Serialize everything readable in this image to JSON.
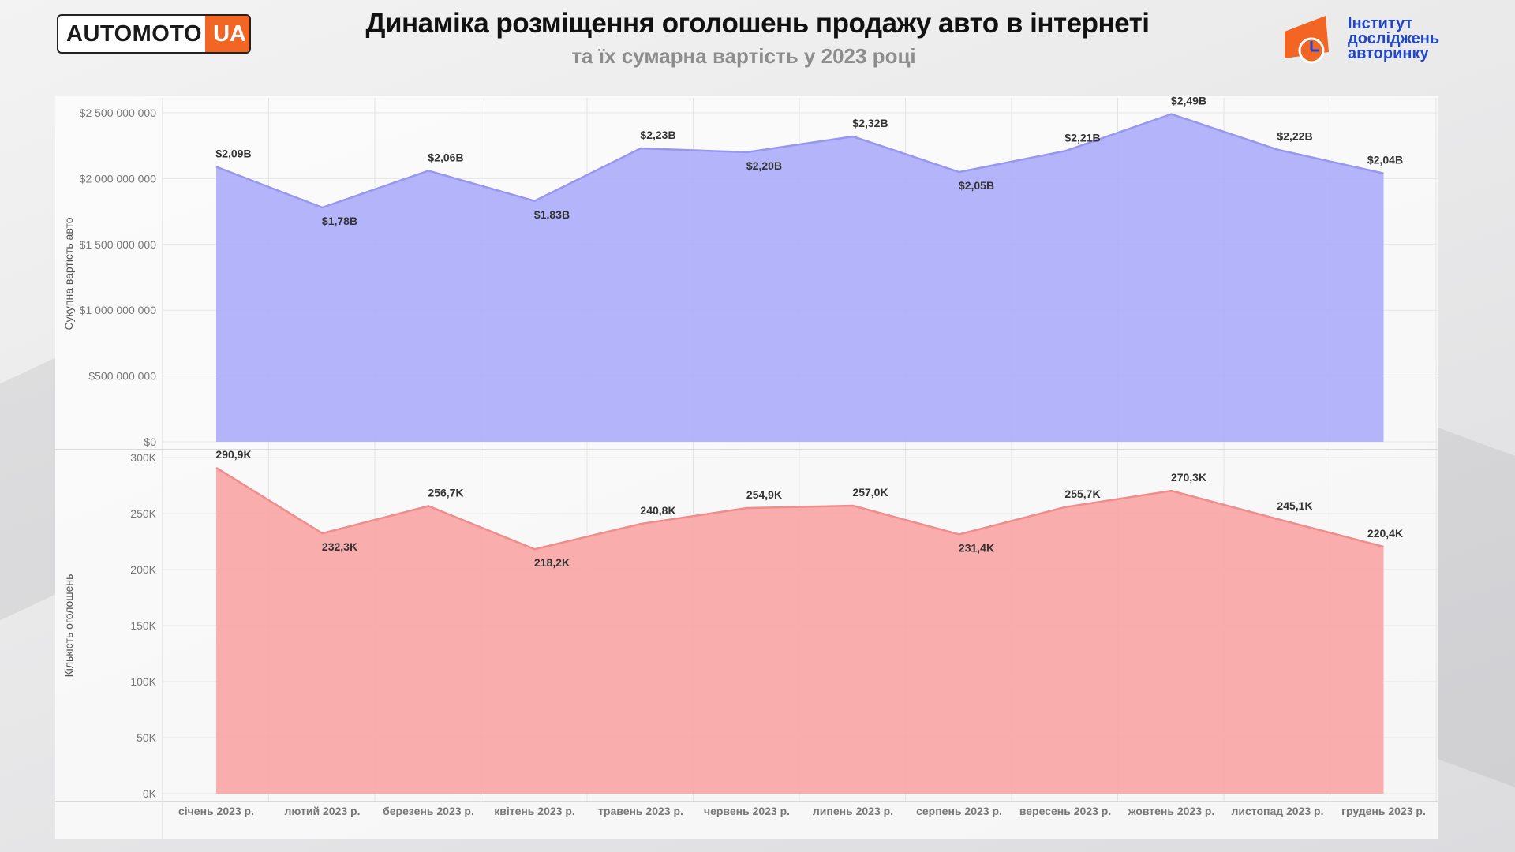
{
  "header": {
    "title": "Динаміка розміщення оголошень продажу авто в інтернеті",
    "subtitle": "та їх сумарна вартість у 2023 році"
  },
  "logos": {
    "left_word": "AUTOMOTO",
    "left_suffix": "UA",
    "right_lines": [
      "Інститут",
      "досліджень",
      "авторинку"
    ]
  },
  "colors": {
    "value_area": "#aeaefb",
    "value_line": "#9797f0",
    "count_area": "#faa6a6",
    "count_line": "#f08c8c",
    "accent_orange": "#f26522",
    "brand_blue": "#2147c9"
  },
  "chart_data": [
    {
      "type": "area",
      "categories": [
        "січень 2023 р.",
        "лютий 2023 р.",
        "березень 2023 р.",
        "квітень 2023 р.",
        "травень 2023 р.",
        "червень 2023 р.",
        "липень 2023 р.",
        "серпень 2023 р.",
        "вересень 2023 р.",
        "жовтень 2023 р.",
        "листопад 2023 р.",
        "грудень 2023 р."
      ],
      "values": [
        2090000000,
        1780000000,
        2060000000,
        1830000000,
        2230000000,
        2200000000,
        2320000000,
        2050000000,
        2210000000,
        2490000000,
        2220000000,
        2040000000
      ],
      "data_labels": [
        "$2,09B",
        "$1,78B",
        "$2,06B",
        "$1,83B",
        "$2,23B",
        "$2,20B",
        "$2,32B",
        "$2,05B",
        "$2,21B",
        "$2,49B",
        "$2,22B",
        "$2,04B"
      ],
      "ylabel": "Сукупна вартість авто",
      "ylim": [
        0,
        2500000000
      ],
      "yticks": [
        0,
        500000000,
        1000000000,
        1500000000,
        2000000000,
        2500000000
      ],
      "ytick_labels": [
        "$0",
        "$500 000 000",
        "$1 000 000 000",
        "$1 500 000 000",
        "$2 000 000 000",
        "$2 500 000 000"
      ],
      "grid": true
    },
    {
      "type": "area",
      "categories": [
        "січень 2023 р.",
        "лютий 2023 р.",
        "березень 2023 р.",
        "квітень 2023 р.",
        "травень 2023 р.",
        "червень 2023 р.",
        "липень 2023 р.",
        "серпень 2023 р.",
        "вересень 2023 р.",
        "жовтень 2023 р.",
        "листопад 2023 р.",
        "грудень 2023 р."
      ],
      "values": [
        290900,
        232300,
        256700,
        218200,
        240800,
        254900,
        257000,
        231400,
        255700,
        270300,
        245100,
        220400
      ],
      "data_labels": [
        "290,9K",
        "232,3K",
        "256,7K",
        "218,2K",
        "240,8K",
        "254,9K",
        "257,0K",
        "231,4K",
        "255,7K",
        "270,3K",
        "245,1K",
        "220,4K"
      ],
      "ylabel": "Кількість оголошень",
      "ylim": [
        0,
        300000
      ],
      "yticks": [
        0,
        50000,
        100000,
        150000,
        200000,
        250000,
        300000
      ],
      "ytick_labels": [
        "0K",
        "50K",
        "100K",
        "150K",
        "200K",
        "250K",
        "300K"
      ],
      "grid": true
    }
  ]
}
